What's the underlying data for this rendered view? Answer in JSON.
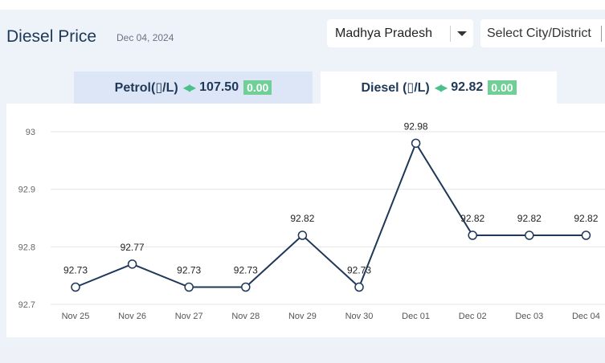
{
  "header": {
    "title": "Diesel Price",
    "date": "Dec 04, 2024"
  },
  "filters": {
    "state": "Madhya Pradesh",
    "city_placeholder": "Select City/District"
  },
  "tabs": [
    {
      "label": "Petrol(▯/L)",
      "price": "107.50",
      "change": "0.00"
    },
    {
      "label": "Diesel (▯/L)",
      "price": "92.82",
      "change": "0.00"
    }
  ],
  "colors": {
    "line": "#1f3858",
    "badge": "#6fcf97",
    "arrows": "#4cc08a",
    "grid": "#e6e6e6"
  },
  "icons": {
    "tab_arrows": "left-right-arrows-icon",
    "dropdown": "caret-down-icon"
  },
  "chart_data": {
    "type": "line",
    "categories": [
      "Nov 25",
      "Nov 26",
      "Nov 27",
      "Nov 28",
      "Nov 29",
      "Nov 30",
      "Dec 01",
      "Dec 02",
      "Dec 03",
      "Dec 04"
    ],
    "values": [
      92.73,
      92.77,
      92.73,
      92.73,
      92.82,
      92.73,
      92.98,
      92.82,
      92.82,
      92.82
    ],
    "data_labels": [
      "92.73",
      "92.77",
      "92.73",
      "92.73",
      "92.82",
      "92.73",
      "92.98",
      "92.82",
      "92.82",
      "92.82"
    ],
    "yticks": [
      "92.7",
      "92.8",
      "92.9",
      "93"
    ],
    "ylim": [
      92.7,
      93.0
    ],
    "grid": true,
    "title": "",
    "xlabel": "",
    "ylabel": ""
  }
}
